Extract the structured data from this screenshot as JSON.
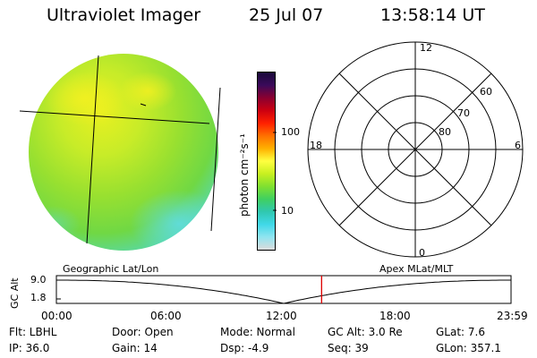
{
  "header": {
    "instrument": "Ultraviolet Imager",
    "date": "25 Jul 07",
    "time": "13:58:14 UT"
  },
  "colorbar": {
    "unit_label": "photon cm⁻²s⁻¹",
    "ticks": [
      "100",
      "10"
    ],
    "colors": [
      "#1a0a3a",
      "#3a0a5a",
      "#8a0030",
      "#cc0010",
      "#ff2000",
      "#ff7000",
      "#ffb000",
      "#ffff40",
      "#c8f020",
      "#80e030",
      "#40d060",
      "#30c8b0",
      "#40d8e8",
      "#90e4f0",
      "#dcdcdc"
    ]
  },
  "polar": {
    "lat_labels": [
      "60",
      "70",
      "80"
    ],
    "mlt_labels": [
      "12",
      "18",
      "6",
      "0"
    ]
  },
  "timeline": {
    "label_left": "Geographic Lat/Lon",
    "label_right": "Apex MLat/MLT",
    "axis_label": "GC Alt",
    "y_ticks": [
      "9.0",
      "1.8"
    ],
    "x_ticks": [
      "00:00",
      "06:00",
      "12:00",
      "18:00",
      "23:59"
    ],
    "marker_color": "#dd0000",
    "marker_time_hours": 14.0
  },
  "footer": {
    "row1": [
      "Flt: LBHL",
      "Door: Open",
      "Mode: Normal",
      "GC Alt: 3.0 Re",
      "GLat:   7.6"
    ],
    "row2": [
      "IP: 36.0",
      "Gain: 14",
      "Dsp:   -4.9",
      "Seq: 39",
      "GLon: 357.1"
    ]
  }
}
